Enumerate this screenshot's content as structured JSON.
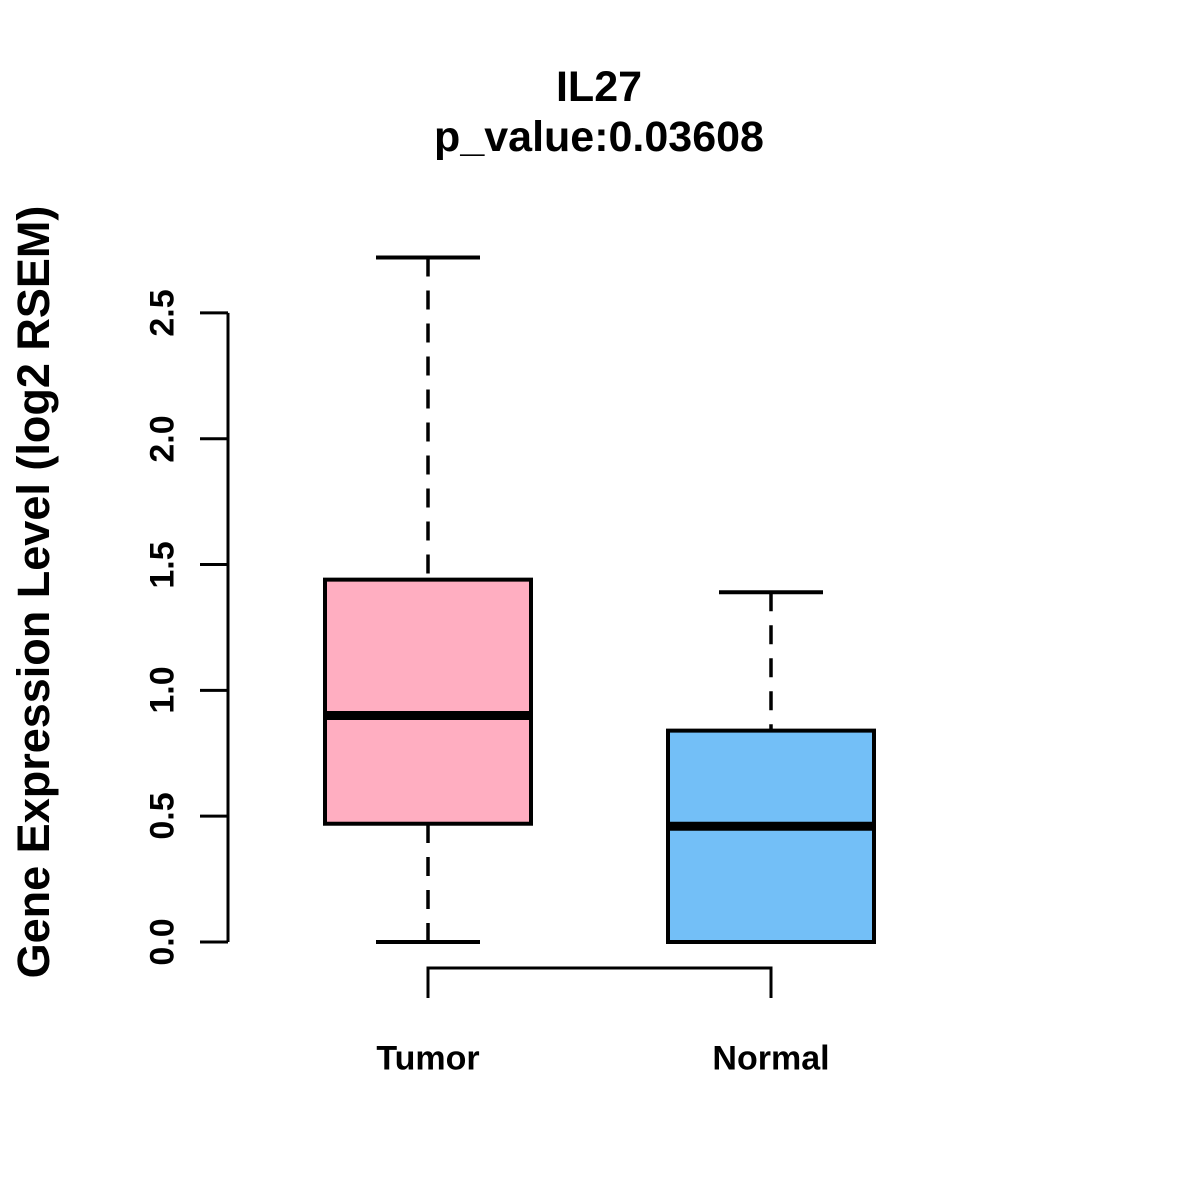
{
  "chart_data": {
    "type": "boxplot",
    "title": "IL27",
    "subtitle": "p_value:0.03608",
    "ylabel": "Gene Expression Level (log2 RSEM)",
    "xlabel": "",
    "categories": [
      "Tumor",
      "Normal"
    ],
    "series": [
      {
        "name": "Tumor",
        "min": 0.0,
        "q1": 0.47,
        "median": 0.9,
        "q3": 1.44,
        "max": 2.72,
        "fill_color": "#FFAEC1"
      },
      {
        "name": "Normal",
        "min": 0.0,
        "q1": 0.0,
        "median": 0.46,
        "q3": 0.84,
        "max": 1.39,
        "fill_color": "#73BFF7"
      }
    ],
    "y_axis": {
      "ticks": [
        0.0,
        0.5,
        1.0,
        1.5,
        2.0,
        2.5
      ],
      "tick_labels": [
        "0.0",
        "0.5",
        "1.0",
        "1.5",
        "2.0",
        "2.5"
      ],
      "range": [
        0.0,
        2.5
      ]
    },
    "grid": false,
    "legend": "none",
    "line_color": "#000000",
    "background_color": "#FFFFFF"
  }
}
